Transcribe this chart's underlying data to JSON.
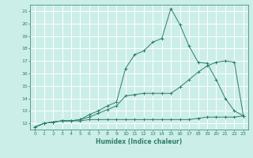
{
  "xlabel": "Humidex (Indice chaleur)",
  "background_color": "#cceee8",
  "grid_color": "#ffffff",
  "line_color": "#2e7d6e",
  "xlim": [
    -0.5,
    23.5
  ],
  "ylim": [
    11.5,
    21.5
  ],
  "xticks": [
    0,
    1,
    2,
    3,
    4,
    5,
    6,
    7,
    8,
    9,
    10,
    11,
    12,
    13,
    14,
    15,
    16,
    17,
    18,
    19,
    20,
    21,
    22,
    23
  ],
  "yticks": [
    12,
    13,
    14,
    15,
    16,
    17,
    18,
    19,
    20,
    21
  ],
  "line1_x": [
    0,
    1,
    2,
    3,
    4,
    5,
    6,
    7,
    8,
    9,
    10,
    11,
    12,
    13,
    14,
    15,
    16,
    17,
    18,
    19,
    20,
    21,
    22,
    23
  ],
  "line1_y": [
    11.7,
    12.0,
    12.1,
    12.2,
    12.2,
    12.2,
    12.3,
    12.3,
    12.3,
    12.3,
    12.3,
    12.3,
    12.3,
    12.3,
    12.3,
    12.3,
    12.3,
    12.3,
    12.4,
    12.5,
    12.5,
    12.5,
    12.5,
    12.6
  ],
  "line2_x": [
    0,
    1,
    2,
    3,
    4,
    5,
    6,
    7,
    8,
    9,
    10,
    11,
    12,
    13,
    14,
    15,
    16,
    17,
    18,
    19,
    20,
    21,
    22,
    23
  ],
  "line2_y": [
    11.7,
    12.0,
    12.1,
    12.2,
    12.2,
    12.3,
    12.5,
    12.8,
    13.1,
    13.4,
    14.2,
    14.3,
    14.4,
    14.4,
    14.4,
    14.4,
    14.9,
    15.5,
    16.1,
    16.6,
    16.9,
    17.0,
    16.9,
    12.6
  ],
  "line3_x": [
    0,
    1,
    2,
    3,
    4,
    5,
    6,
    7,
    8,
    9,
    10,
    11,
    12,
    13,
    14,
    15,
    16,
    17,
    18,
    19,
    20,
    21,
    22,
    23
  ],
  "line3_y": [
    11.7,
    12.0,
    12.1,
    12.2,
    12.2,
    12.3,
    12.7,
    13.0,
    13.4,
    13.7,
    16.4,
    17.5,
    17.8,
    18.5,
    18.8,
    21.2,
    19.9,
    18.2,
    16.9,
    16.8,
    15.5,
    14.0,
    13.0,
    12.6
  ]
}
